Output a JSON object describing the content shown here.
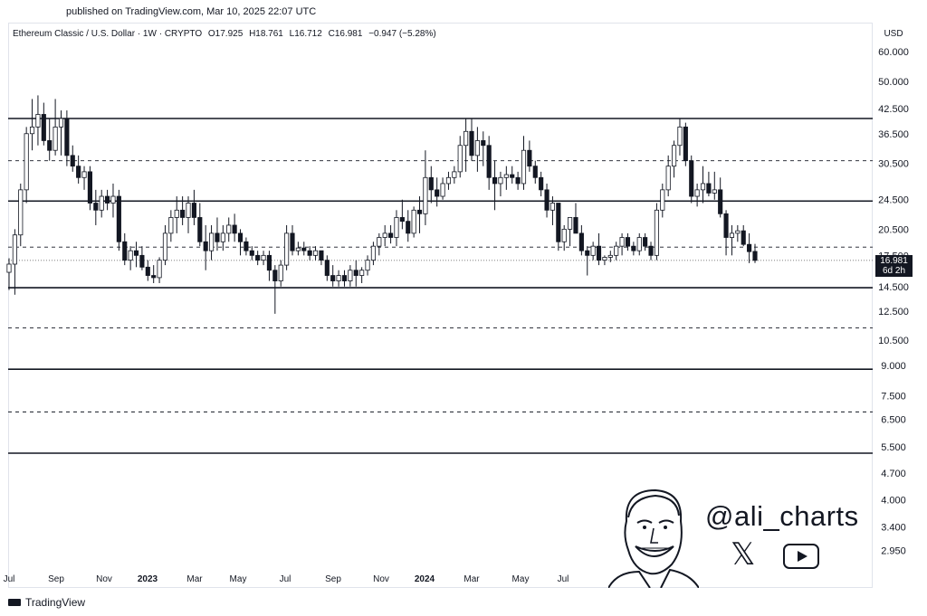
{
  "header": {
    "published": "published on TradingView.com, Mar 10, 2025 22:07 UTC"
  },
  "legend": {
    "symbol": "Ethereum Classic / U.S. Dollar · 1W · CRYPTO",
    "open": "O17.925",
    "high": "H18.761",
    "low": "L16.712",
    "close": "C16.981",
    "change": "−0.947 (−5.28%)"
  },
  "currency": "USD",
  "price_tag": {
    "price": "16.981",
    "countdown": "6d 2h"
  },
  "footer": {
    "brand": "TradingView"
  },
  "watermark": {
    "handle": "@ali_charts",
    "icons": [
      "x-logo-icon",
      "youtube-icon"
    ]
  },
  "colors": {
    "candle_up": "#ffffff",
    "candle_down": "#131722",
    "line": "#131722",
    "grid": "#e0e3eb"
  },
  "chart_data": {
    "type": "candlestick",
    "scale": "log",
    "title": "",
    "y_ticks": [
      "60.000",
      "50.000",
      "42.500",
      "36.500",
      "30.500",
      "24.500",
      "20.500",
      "17.500",
      "14.500",
      "12.500",
      "10.500",
      "9.000",
      "7.500",
      "6.500",
      "5.500",
      "4.700",
      "4.000",
      "3.400",
      "2.950"
    ],
    "x_ticks": [
      "Jul",
      "Sep",
      "Nov",
      "2023",
      "Mar",
      "May",
      "Jul",
      "Sep",
      "Nov",
      "2024",
      "Mar",
      "May",
      "Jul"
    ],
    "x_ticks_bold": [
      "2023",
      "2024"
    ],
    "ylim": [
      2.6,
      70
    ],
    "horizontal_levels": [
      {
        "value": 40.0,
        "style": "solid"
      },
      {
        "value": 31.0,
        "style": "dashed"
      },
      {
        "value": 24.3,
        "style": "solid"
      },
      {
        "value": 18.4,
        "style": "dashed"
      },
      {
        "value": 14.4,
        "style": "solid"
      },
      {
        "value": 11.3,
        "style": "dashed"
      },
      {
        "value": 8.8,
        "style": "solid"
      },
      {
        "value": 6.8,
        "style": "dashed"
      },
      {
        "value": 5.3,
        "style": "solid"
      }
    ],
    "last_price_line": 16.981,
    "candles": [
      [
        15.8,
        17.2,
        14.2,
        16.6
      ],
      [
        16.6,
        20.5,
        13.8,
        19.8
      ],
      [
        19.8,
        27,
        18.5,
        26
      ],
      [
        26,
        38,
        24,
        36.5
      ],
      [
        36.5,
        45,
        33,
        38
      ],
      [
        38,
        46,
        34,
        41
      ],
      [
        41,
        44,
        34,
        35
      ],
      [
        35,
        40,
        31,
        33
      ],
      [
        33,
        45,
        32,
        38
      ],
      [
        38,
        42,
        32,
        40
      ],
      [
        40,
        42,
        30,
        32
      ],
      [
        32,
        34,
        29,
        30
      ],
      [
        30,
        32,
        27,
        28
      ],
      [
        28,
        30,
        26,
        29
      ],
      [
        29,
        30,
        23,
        24
      ],
      [
        24,
        26,
        21,
        23
      ],
      [
        23,
        26,
        22,
        25
      ],
      [
        25,
        26,
        23,
        24
      ],
      [
        24,
        27,
        22,
        25
      ],
      [
        25,
        26,
        18,
        19
      ],
      [
        19,
        20,
        16.5,
        17
      ],
      [
        17,
        18.5,
        16,
        18
      ],
      [
        18,
        19,
        16.3,
        17.5
      ],
      [
        17.5,
        18.5,
        16,
        16.3
      ],
      [
        16.3,
        17,
        15,
        15.5
      ],
      [
        15.5,
        16.5,
        14.8,
        15.3
      ],
      [
        15.3,
        17.3,
        14.8,
        17
      ],
      [
        17,
        21,
        16.5,
        20
      ],
      [
        20,
        23,
        19,
        22
      ],
      [
        22,
        25,
        20,
        23
      ],
      [
        23,
        25,
        21,
        22
      ],
      [
        22,
        25,
        20,
        24
      ],
      [
        24,
        26,
        21,
        22
      ],
      [
        22,
        24,
        18.5,
        19
      ],
      [
        19,
        21,
        16,
        18
      ],
      [
        18,
        21,
        17,
        20
      ],
      [
        20,
        22,
        18,
        19
      ],
      [
        19,
        21,
        18,
        20
      ],
      [
        20,
        22,
        19,
        21
      ],
      [
        21,
        22.5,
        19,
        20
      ],
      [
        20,
        20.5,
        17.5,
        19
      ],
      [
        19,
        19.5,
        17.5,
        18
      ],
      [
        18,
        18.5,
        17,
        17.5
      ],
      [
        17.5,
        18,
        16.5,
        17
      ],
      [
        17,
        18,
        16.5,
        17.5
      ],
      [
        17.5,
        18,
        15,
        16
      ],
      [
        16,
        16.5,
        12.3,
        15
      ],
      [
        15,
        17,
        14.5,
        16.5
      ],
      [
        16.5,
        21,
        16,
        20
      ],
      [
        20,
        21,
        17.5,
        18
      ],
      [
        18,
        19,
        17.5,
        18.3
      ],
      [
        18.3,
        19,
        17.5,
        18
      ],
      [
        18,
        18.5,
        17,
        17.5
      ],
      [
        17.5,
        18.5,
        17,
        18
      ],
      [
        18,
        18,
        16.5,
        17
      ],
      [
        17,
        17.5,
        15,
        15.5
      ],
      [
        15.5,
        16.5,
        14.5,
        15
      ],
      [
        15,
        16,
        14.5,
        15.5
      ],
      [
        15.5,
        16,
        14.5,
        15
      ],
      [
        15,
        16.5,
        14.5,
        16
      ],
      [
        16,
        17,
        14.5,
        15.5
      ],
      [
        15.5,
        16.3,
        14.8,
        16
      ],
      [
        16,
        17.5,
        15.5,
        17
      ],
      [
        17,
        19,
        16.5,
        18.5
      ],
      [
        18.5,
        20,
        17.5,
        19.5
      ],
      [
        19.5,
        21,
        18.5,
        20
      ],
      [
        20,
        21,
        18.8,
        19.5
      ],
      [
        19.5,
        23,
        18.5,
        22
      ],
      [
        22,
        24.5,
        20.5,
        21.5
      ],
      [
        21.5,
        23,
        19,
        20
      ],
      [
        20,
        23.5,
        19.5,
        23
      ],
      [
        23,
        25,
        20,
        22.5
      ],
      [
        22.5,
        33,
        21,
        28
      ],
      [
        28,
        30,
        24,
        26
      ],
      [
        26,
        28,
        23.5,
        25
      ],
      [
        25,
        28,
        24.5,
        27
      ],
      [
        27,
        29,
        26,
        28
      ],
      [
        28,
        30,
        27,
        29
      ],
      [
        29,
        36,
        28,
        34
      ],
      [
        34,
        40,
        29,
        37
      ],
      [
        37,
        40,
        31,
        32
      ],
      [
        32,
        38,
        29,
        35
      ],
      [
        35,
        37,
        30,
        34
      ],
      [
        34,
        36,
        26,
        28
      ],
      [
        28,
        31,
        23,
        27
      ],
      [
        27,
        29,
        25,
        28
      ],
      [
        28,
        30,
        26,
        28.5
      ],
      [
        28.5,
        30,
        27,
        28
      ],
      [
        28,
        29,
        26,
        27
      ],
      [
        27,
        36,
        26,
        33
      ],
      [
        33,
        35,
        29,
        30
      ],
      [
        30,
        31,
        27,
        28
      ],
      [
        28,
        29,
        25,
        26
      ],
      [
        26,
        27,
        22,
        23
      ],
      [
        23,
        25,
        21,
        24
      ],
      [
        24,
        24,
        18,
        19
      ],
      [
        19,
        21,
        18,
        20.5
      ],
      [
        20.5,
        22,
        18.5,
        22
      ],
      [
        22,
        24,
        20,
        20
      ],
      [
        20,
        21,
        17.5,
        18
      ],
      [
        18,
        18.5,
        15.5,
        17.5
      ],
      [
        17.5,
        19,
        17,
        18.5
      ],
      [
        18.5,
        20,
        16.5,
        17
      ],
      [
        17,
        17.5,
        16.5,
        17.3
      ],
      [
        17.3,
        18,
        16.8,
        17.5
      ],
      [
        17.5,
        19,
        17,
        18.5
      ],
      [
        18.5,
        20,
        17.5,
        19.5
      ],
      [
        19.5,
        20,
        18,
        18.5
      ],
      [
        18.5,
        19,
        17.5,
        18
      ],
      [
        18,
        20,
        17.5,
        19.5
      ],
      [
        19.5,
        20,
        18,
        18.5
      ],
      [
        18.5,
        19,
        17,
        17.5
      ],
      [
        17.5,
        24,
        17,
        23
      ],
      [
        23,
        27,
        22,
        26
      ],
      [
        26,
        32,
        25,
        30
      ],
      [
        30,
        35,
        28,
        34
      ],
      [
        34,
        40,
        32,
        38
      ],
      [
        38,
        39,
        30,
        31
      ],
      [
        31,
        32,
        24,
        25
      ],
      [
        25,
        27,
        23.5,
        26
      ],
      [
        26,
        30,
        24,
        27
      ],
      [
        27,
        29,
        25,
        25.5
      ],
      [
        25.5,
        29,
        24.5,
        26
      ],
      [
        26,
        28,
        22,
        22.5
      ],
      [
        22.5,
        23,
        17.5,
        19.5
      ],
      [
        19.5,
        21,
        17.5,
        20
      ],
      [
        20,
        21,
        19,
        20.3
      ],
      [
        20.3,
        21,
        18.5,
        18.7
      ],
      [
        18.7,
        20,
        16.7,
        17.9
      ],
      [
        17.925,
        18.761,
        16.712,
        16.981
      ]
    ]
  }
}
